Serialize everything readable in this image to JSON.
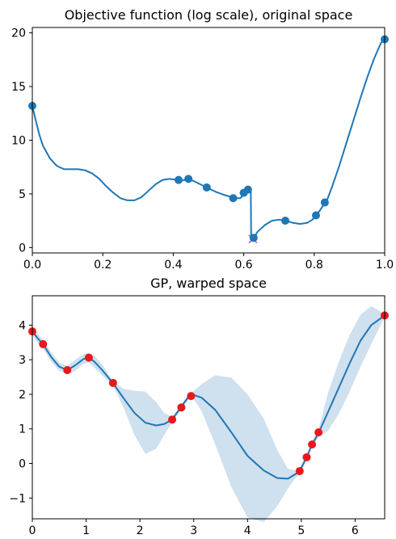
{
  "chart_data": [
    {
      "type": "line",
      "title": "Objective function (log scale), original space",
      "xlabel": "",
      "ylabel": "",
      "xlim": [
        0,
        1
      ],
      "ylim": [
        -0.5,
        20.5
      ],
      "xticks": [
        "0.0",
        "0.2",
        "0.4",
        "0.6",
        "0.8",
        "1.0"
      ],
      "yticks": [
        "0",
        "5",
        "10",
        "15",
        "20"
      ],
      "line_color": "#1f77b4",
      "curve": {
        "x": [
          0,
          0.01,
          0.02,
          0.03,
          0.05,
          0.07,
          0.09,
          0.11,
          0.13,
          0.15,
          0.17,
          0.19,
          0.21,
          0.23,
          0.25,
          0.27,
          0.29,
          0.31,
          0.33,
          0.35,
          0.37,
          0.39,
          0.41,
          0.42,
          0.445,
          0.47,
          0.495,
          0.52,
          0.545,
          0.565,
          0.575,
          0.59,
          0.605,
          0.62,
          0.621,
          0.627,
          0.64,
          0.66,
          0.68,
          0.7,
          0.72,
          0.74,
          0.76,
          0.78,
          0.795,
          0.805,
          0.815,
          0.825,
          0.835,
          0.85,
          0.87,
          0.89,
          0.91,
          0.93,
          0.95,
          0.97,
          0.99,
          1.0
        ],
        "y": [
          13.2,
          11.8,
          10.5,
          9.5,
          8.3,
          7.6,
          7.3,
          7.3,
          7.3,
          7.2,
          6.9,
          6.4,
          5.7,
          5.1,
          4.6,
          4.4,
          4.4,
          4.7,
          5.3,
          5.9,
          6.3,
          6.4,
          6.3,
          6.2,
          6.4,
          6.0,
          5.6,
          5.2,
          4.9,
          4.7,
          4.6,
          4.6,
          5.1,
          5.4,
          1.2,
          0.9,
          1.5,
          2.1,
          2.5,
          2.6,
          2.5,
          2.3,
          2.2,
          2.3,
          2.6,
          3.0,
          3.4,
          3.9,
          4.3,
          5.6,
          7.5,
          9.6,
          11.7,
          13.8,
          15.8,
          17.6,
          19.1,
          19.4
        ]
      },
      "points": {
        "x": [
          0,
          0.415,
          0.443,
          0.495,
          0.57,
          0.6,
          0.612,
          0.628,
          0.718,
          0.805,
          0.83,
          1.0
        ],
        "y": [
          13.2,
          6.3,
          6.4,
          5.6,
          4.6,
          5.1,
          5.4,
          0.9,
          2.5,
          3.0,
          4.2,
          19.4
        ]
      },
      "marker": {
        "x": 0.626,
        "y": 0.8,
        "shape": "x",
        "color": "#b657d3"
      }
    },
    {
      "type": "line",
      "title": "GP, warped space",
      "xlabel": "",
      "ylabel": "",
      "xlim": [
        0,
        6.55
      ],
      "ylim": [
        -1.6,
        4.85
      ],
      "xticks": [
        "0",
        "1",
        "2",
        "3",
        "4",
        "5",
        "6"
      ],
      "yticks": [
        "−1",
        "0",
        "1",
        "2",
        "3",
        "4"
      ],
      "line_color": "#1f77b4",
      "band_color": "#cfe0ee",
      "mean": {
        "x": [
          0,
          0.1,
          0.2,
          0.35,
          0.5,
          0.65,
          0.8,
          0.95,
          1.05,
          1.15,
          1.3,
          1.5,
          1.7,
          1.9,
          2.1,
          2.3,
          2.45,
          2.6,
          2.75,
          2.9,
          3.0,
          3.15,
          3.4,
          3.7,
          4.0,
          4.3,
          4.55,
          4.75,
          4.9,
          4.97,
          5.1,
          5.2,
          5.32,
          5.5,
          5.7,
          5.9,
          6.1,
          6.3,
          6.55
        ],
        "y": [
          3.82,
          3.62,
          3.45,
          3.08,
          2.8,
          2.7,
          2.84,
          3.02,
          3.06,
          2.95,
          2.7,
          2.32,
          1.88,
          1.46,
          1.18,
          1.1,
          1.14,
          1.27,
          1.6,
          1.92,
          1.98,
          1.9,
          1.55,
          0.9,
          0.22,
          -0.2,
          -0.42,
          -0.44,
          -0.3,
          -0.22,
          0.18,
          0.55,
          0.88,
          1.5,
          2.2,
          2.9,
          3.55,
          4.0,
          4.28
        ]
      },
      "band_upper": [
        3.92,
        3.75,
        3.58,
        3.22,
        2.92,
        2.82,
        3.0,
        3.16,
        3.2,
        3.12,
        2.86,
        2.38,
        2.16,
        2.1,
        2.08,
        1.78,
        1.46,
        1.35,
        1.66,
        2.0,
        2.1,
        2.3,
        2.55,
        2.48,
        2.0,
        1.3,
        0.4,
        -0.15,
        -0.2,
        -0.12,
        0.26,
        0.63,
        1.0,
        2.05,
        2.95,
        3.72,
        4.3,
        4.55,
        4.32
      ],
      "band_lower": [
        3.72,
        3.49,
        3.32,
        2.94,
        2.68,
        2.58,
        2.68,
        2.88,
        2.92,
        2.78,
        2.54,
        2.26,
        1.6,
        0.82,
        0.28,
        0.42,
        0.82,
        1.19,
        1.54,
        1.84,
        1.86,
        1.5,
        0.55,
        -0.68,
        -1.56,
        -1.7,
        -1.24,
        -0.73,
        -0.4,
        -0.32,
        0.1,
        0.47,
        0.76,
        0.95,
        1.45,
        2.08,
        2.8,
        3.45,
        4.24
      ],
      "points": {
        "x": [
          0,
          0.2,
          0.65,
          1.05,
          1.5,
          2.6,
          2.77,
          2.95,
          4.97,
          5.1,
          5.2,
          5.32,
          6.55
        ],
        "y": [
          3.82,
          3.45,
          2.7,
          3.06,
          2.33,
          1.27,
          1.62,
          1.95,
          -0.22,
          0.18,
          0.55,
          0.9,
          4.28
        ]
      },
      "point_color": "#e8181b"
    }
  ]
}
